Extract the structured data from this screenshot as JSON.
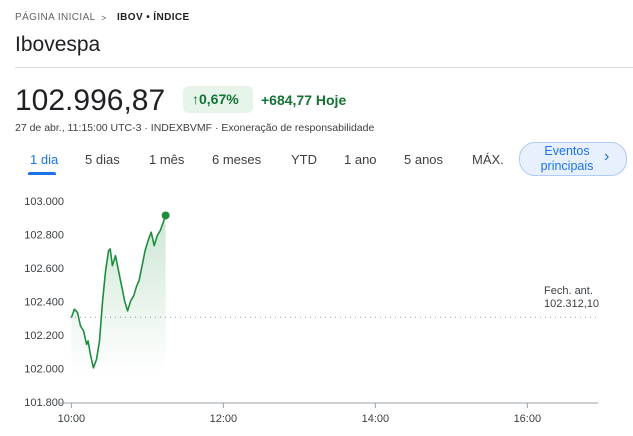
{
  "header": {
    "breadcrumb": [
      "PÁGINA INICIAL",
      "IBOV • ÍNDICE"
    ],
    "title": "Ibovespa",
    "price": "102.996,87",
    "change_percent": "0,67%",
    "change_today": "+684,77 Hoje",
    "meta": "27 de abr., 11:15:00 UTC-3 · INDEXBVMF · Exoneração de responsabilidade"
  },
  "tabs": [
    "1 dia",
    "5 dias",
    "1 mês",
    "6 meses",
    "YTD",
    "1 ano",
    "5 anos",
    "MÁX."
  ],
  "events_button": "Eventos principais",
  "chart_data": {
    "type": "line",
    "color": "#1e8e3e",
    "grid": false,
    "x": [
      10,
      10.04,
      10.08,
      10.12,
      10.16,
      10.2,
      10.22,
      10.25,
      10.29,
      10.33,
      10.37,
      10.41,
      10.45,
      10.49,
      10.51,
      10.54,
      10.58,
      10.62,
      10.66,
      10.7,
      10.74,
      10.78,
      10.82,
      10.86,
      10.89,
      10.93,
      10.97,
      11.01,
      11.05,
      11.09,
      11.13,
      11.17,
      11.21,
      11.24
    ],
    "values": [
      102310,
      102360,
      102340,
      102260,
      102230,
      102150,
      102170,
      102090,
      102010,
      102060,
      102170,
      102410,
      102590,
      102710,
      102720,
      102620,
      102680,
      102590,
      102500,
      102410,
      102350,
      102410,
      102440,
      102500,
      102530,
      102620,
      102710,
      102770,
      102820,
      102740,
      102800,
      102830,
      102880,
      102920
    ],
    "xlim": [
      9.85,
      16.93
    ],
    "xticks": [
      {
        "value": 10,
        "label": "10:00"
      },
      {
        "value": 12,
        "label": "12:00"
      },
      {
        "value": 14,
        "label": "14:00"
      },
      {
        "value": 16,
        "label": "16:00"
      }
    ],
    "ylim": [
      101800,
      103060
    ],
    "yticks": [
      {
        "value": 101800,
        "label": "101.800"
      },
      {
        "value": 102000,
        "label": "102.000"
      },
      {
        "value": 102200,
        "label": "102.200"
      },
      {
        "value": 102400,
        "label": "102.400"
      },
      {
        "value": 102600,
        "label": "102.600"
      },
      {
        "value": 102800,
        "label": "102.800"
      },
      {
        "value": 103000,
        "label": "103.000"
      }
    ],
    "previous_close": {
      "label": "Fech. ant.",
      "value": 102312.1,
      "value_label": "102.312,10"
    }
  }
}
